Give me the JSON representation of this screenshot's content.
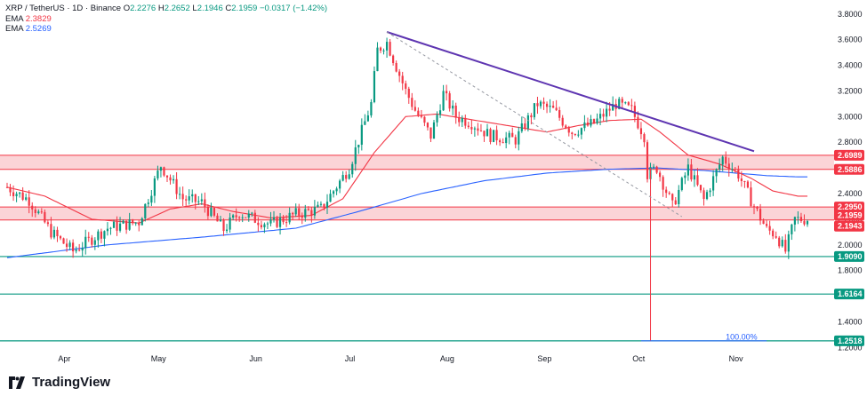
{
  "legend": {
    "symbol": "XRP / TetherUS · 1D · Binance",
    "open_label": "O",
    "open": "2.2276",
    "high_label": "H",
    "high": "2.2652",
    "low_label": "L",
    "low": "2.1946",
    "close_label": "C",
    "close": "2.1959",
    "change": "−0.0317 (−1.42%)",
    "ema1_label": "EMA",
    "ema1": "2.3829",
    "ema2_label": "EMA",
    "ema2": "2.5269"
  },
  "brand": {
    "name": "TradingView"
  },
  "colors": {
    "up": "#089981",
    "down": "#f23645",
    "ema_fast": "#f23645",
    "ema_slow": "#2962ff",
    "zone_fill": "#f9c5c9",
    "zone_line": "#f23645",
    "trendline": "#5e35b1",
    "support": "#089981"
  },
  "chart_data": {
    "type": "candlestick",
    "x_ticks": [
      "Apr",
      "May",
      "Jun",
      "Jul",
      "Aug",
      "Sep",
      "Oct",
      "Nov"
    ],
    "y_ticks": [
      "1.2000",
      "1.4000",
      "1.6000",
      "1.8000",
      "2.0000",
      "2.2000",
      "2.4000",
      "2.6000",
      "2.8000",
      "3.0000",
      "3.2000",
      "3.4000",
      "3.6000",
      "3.8000"
    ],
    "ylim": [
      1.14,
      3.84
    ],
    "x_range_days": [
      -12,
      243
    ],
    "zones": [
      {
        "low": 2.5886,
        "high": 2.6989
      },
      {
        "low": 2.1943,
        "high": 2.295
      }
    ],
    "support_levels": [
      1.909,
      1.6164,
      1.2518
    ],
    "price_tags": [
      {
        "value": 2.6989,
        "text": "2.6989",
        "kind": "down"
      },
      {
        "value": 2.5886,
        "text": "2.5886",
        "kind": "down"
      },
      {
        "value": 2.295,
        "text": "2.2950",
        "kind": "down"
      },
      {
        "value": 2.1959,
        "text": "2.1959",
        "kind": "down"
      },
      {
        "value": 2.1943,
        "text": "2.1943",
        "kind": "down"
      },
      {
        "value": 1.909,
        "text": "1.9090",
        "kind": "up"
      },
      {
        "value": 1.6164,
        "text": "1.6164",
        "kind": "up"
      },
      {
        "value": 1.2518,
        "text": "1.2518",
        "kind": "up"
      }
    ],
    "trendline": {
      "from": {
        "day": 109,
        "price": 3.66
      },
      "to": {
        "day": 226,
        "price": 2.73
      }
    },
    "fib_dotted": {
      "from": {
        "day": 109,
        "price": 3.66
      },
      "to": {
        "day": 203,
        "price": 2.22
      }
    },
    "fib_label": {
      "text": "100.00%",
      "day": 222,
      "price": 1.262
    },
    "fib_line": {
      "from_day": 190,
      "to_day": 230,
      "price": 1.252
    },
    "candles_ohlc_anchor_days": [
      -12,
      -5,
      2,
      9,
      20,
      30,
      37,
      44,
      50,
      57,
      62,
      67,
      72,
      80,
      88,
      97,
      104,
      106,
      109,
      115,
      118,
      123,
      127,
      131,
      136,
      142,
      150,
      157,
      162,
      168,
      175,
      182,
      187,
      191,
      192,
      195,
      200,
      205,
      210,
      216,
      221,
      226,
      230,
      233,
      236,
      239,
      243
    ],
    "candles_close_anchors": [
      2.45,
      2.35,
      2.1,
      1.95,
      2.13,
      2.18,
      2.62,
      2.36,
      2.33,
      2.12,
      2.25,
      2.2,
      2.16,
      2.24,
      2.28,
      2.6,
      3.1,
      3.52,
      3.58,
      3.2,
      3.05,
      2.85,
      3.18,
      3.0,
      2.95,
      2.85,
      2.82,
      3.1,
      3.05,
      2.88,
      2.95,
      3.1,
      3.05,
      2.85,
      2.55,
      2.6,
      2.3,
      2.6,
      2.35,
      2.68,
      2.55,
      2.3,
      2.12,
      2.08,
      1.95,
      2.2,
      2.2
    ],
    "ema_fast_days": [
      -12,
      0,
      15,
      30,
      40,
      50,
      60,
      72,
      85,
      95,
      105,
      115,
      125,
      135,
      150,
      160,
      170,
      180,
      190,
      196,
      205,
      215,
      225,
      232,
      240
    ],
    "ema_fast_values": [
      2.45,
      2.38,
      2.2,
      2.17,
      2.28,
      2.32,
      2.26,
      2.21,
      2.23,
      2.36,
      2.72,
      3.0,
      3.02,
      2.98,
      2.92,
      2.88,
      2.93,
      2.97,
      2.98,
      2.88,
      2.7,
      2.63,
      2.52,
      2.42,
      2.38
    ],
    "ema_slow_days": [
      -12,
      20,
      50,
      80,
      100,
      120,
      140,
      160,
      180,
      195,
      210,
      230,
      240
    ],
    "ema_slow_values": [
      1.9,
      2.0,
      2.06,
      2.13,
      2.26,
      2.4,
      2.5,
      2.56,
      2.59,
      2.6,
      2.58,
      2.54,
      2.53
    ]
  }
}
